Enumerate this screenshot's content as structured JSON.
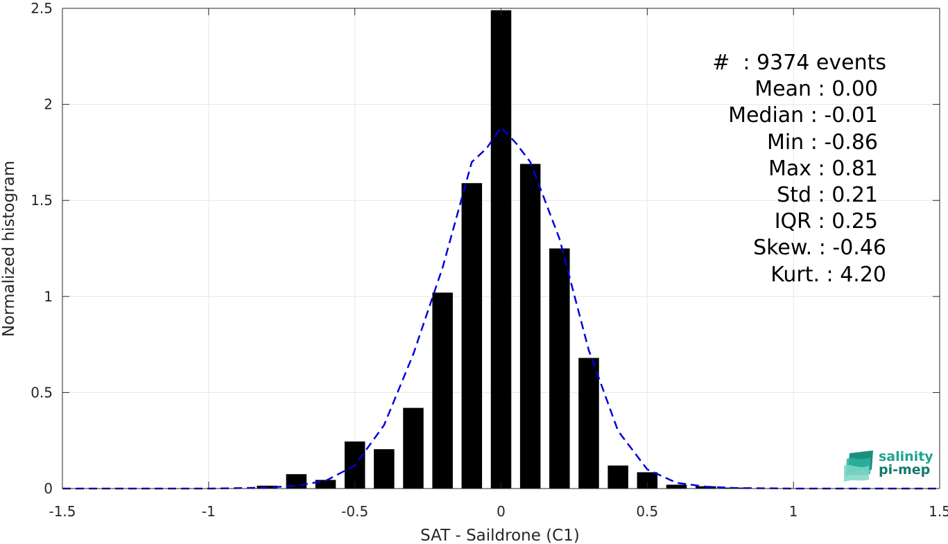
{
  "chart_data": {
    "type": "bar",
    "xlabel": "SAT - Saildrone (C1)",
    "ylabel": "Normalized histogram",
    "xlim": [
      -1.5,
      1.5
    ],
    "ylim": [
      0,
      2.5
    ],
    "x_ticks": [
      "-1.5",
      "-1",
      "-0.5",
      "0",
      "0.5",
      "1",
      "1.5"
    ],
    "y_ticks": [
      "0",
      "0.5",
      "1",
      "1.5",
      "2",
      "2.5"
    ],
    "grid": true,
    "bar_width": 0.07,
    "bars": {
      "x": [
        -0.8,
        -0.7,
        -0.6,
        -0.5,
        -0.4,
        -0.3,
        -0.2,
        -0.1,
        0.0,
        0.1,
        0.2,
        0.3,
        0.4,
        0.5,
        0.6,
        0.7,
        0.8
      ],
      "values": [
        0.015,
        0.075,
        0.045,
        0.245,
        0.205,
        0.42,
        1.02,
        1.59,
        2.49,
        1.69,
        1.25,
        0.68,
        0.12,
        0.085,
        0.02,
        0.012,
        0.005
      ]
    },
    "fit_curve": {
      "style": "dashed",
      "color": "#0000e0",
      "x": [
        -1.5,
        -1.2,
        -1.0,
        -0.9,
        -0.8,
        -0.7,
        -0.6,
        -0.5,
        -0.4,
        -0.3,
        -0.2,
        -0.1,
        -0.05,
        0.0,
        0.05,
        0.1,
        0.2,
        0.3,
        0.4,
        0.5,
        0.6,
        0.7,
        0.8,
        1.0,
        1.5
      ],
      "y": [
        0,
        0,
        0,
        0.002,
        0.005,
        0.015,
        0.04,
        0.12,
        0.33,
        0.7,
        1.15,
        1.7,
        1.77,
        1.88,
        1.8,
        1.7,
        1.3,
        0.72,
        0.3,
        0.1,
        0.03,
        0.01,
        0.003,
        0,
        0
      ]
    }
  },
  "stats": {
    "events": "#  : 9374 events",
    "mean": "Mean : 0.00",
    "median": "Median : -0.01",
    "min": "Min : -0.86",
    "max": "Max : 0.81",
    "std": "Std : 0.21",
    "iqr": "IQR : 0.25",
    "skew": "Skew. : -0.46",
    "kurt": "Kurt. : 4.20"
  },
  "logo": {
    "line1": "salinity",
    "line2": "pi-mep",
    "icon": "wave-logo-icon"
  },
  "colors": {
    "bars": "#000000",
    "curve": "#0000e0",
    "grid": "#e6e6e6",
    "axis": "#262626",
    "logo": "#1aa58f"
  }
}
